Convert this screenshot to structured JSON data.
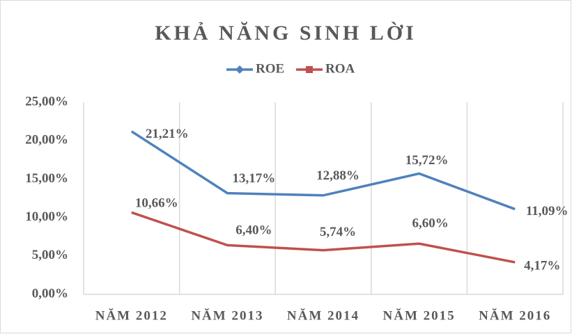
{
  "chart_data": {
    "type": "line",
    "title": "KHẢ NĂNG SINH LỜI",
    "categories": [
      "NĂM 2012",
      "NĂM 2013",
      "NĂM 2014",
      "NĂM 2015",
      "NĂM 2016"
    ],
    "series": [
      {
        "name": "ROE",
        "color": "#4f81bd",
        "values": [
          21.21,
          13.17,
          12.88,
          15.72,
          11.09
        ],
        "value_labels": [
          "21,21%",
          "13,17%",
          "12,88%",
          "15,72%",
          "11,09%"
        ]
      },
      {
        "name": "ROA",
        "color": "#c0504d",
        "values": [
          10.66,
          6.4,
          5.74,
          6.6,
          4.17
        ],
        "value_labels": [
          "10,66%",
          "6,40%",
          "5,74%",
          "6,60%",
          "4,17%"
        ]
      }
    ],
    "ylim": [
      0,
      25
    ],
    "yticks": [
      {
        "value": 0,
        "label": "0,00%"
      },
      {
        "value": 5,
        "label": "5,00%"
      },
      {
        "value": 10,
        "label": "10,00%"
      },
      {
        "value": 15,
        "label": "15,00%"
      },
      {
        "value": 20,
        "label": "20,00%"
      },
      {
        "value": 25,
        "label": "25,00%"
      }
    ],
    "grid": true,
    "legend": "top"
  }
}
